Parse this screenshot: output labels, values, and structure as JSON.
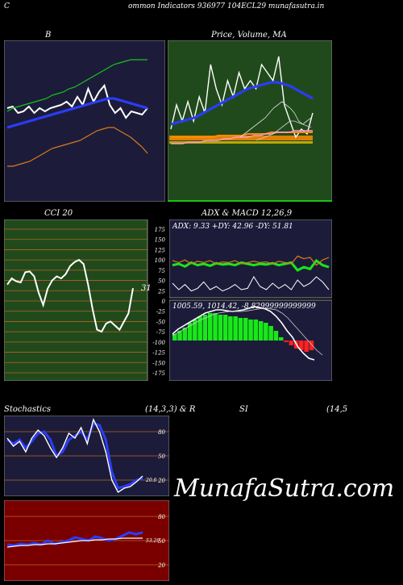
{
  "page": {
    "corner_left": "C",
    "header": "ommon  Indicators 936977 104ECL29 munafasutra.in",
    "watermark": "MunafaSutra.com"
  },
  "colors": {
    "background": "#000000",
    "navy": "#1c1c3a",
    "green": "#214a1c",
    "maroon": "#7a0000",
    "grid_orange": "#b5651d"
  },
  "icons": {
    "bar-chart": "chart",
    "trend-chart": "chart"
  },
  "chart_data": [
    {
      "type": "line",
      "title": "B",
      "series": [
        {
          "color": "#ffffff",
          "values": [
            0.58,
            0.59,
            0.55,
            0.56,
            0.59,
            0.55,
            0.58,
            0.56,
            0.58,
            0.59,
            0.6,
            0.62,
            0.59,
            0.65,
            0.6,
            0.7,
            0.62,
            0.68,
            0.72,
            0.6,
            0.55,
            0.58,
            0.52,
            0.56,
            0.55,
            0.54,
            0.58
          ]
        },
        {
          "color": "#2b3cff",
          "values": [
            0.46,
            0.47,
            0.48,
            0.49,
            0.5,
            0.51,
            0.52,
            0.53,
            0.54,
            0.55,
            0.56,
            0.57,
            0.58,
            0.59,
            0.6,
            0.61,
            0.62,
            0.63,
            0.64,
            0.64,
            0.63,
            0.62,
            0.61,
            0.6,
            0.59,
            0.58
          ]
        },
        {
          "color": "#18c418",
          "values": [
            0.56,
            0.58,
            0.59,
            0.6,
            0.61,
            0.62,
            0.63,
            0.64,
            0.66,
            0.67,
            0.68,
            0.7,
            0.71,
            0.73,
            0.75,
            0.77,
            0.79,
            0.81,
            0.83,
            0.85,
            0.86,
            0.87,
            0.88,
            0.88,
            0.88,
            0.88
          ]
        },
        {
          "color": "#d87a1c",
          "values": [
            0.22,
            0.22,
            0.23,
            0.24,
            0.25,
            0.27,
            0.29,
            0.31,
            0.33,
            0.34,
            0.35,
            0.36,
            0.37,
            0.38,
            0.4,
            0.42,
            0.44,
            0.45,
            0.46,
            0.46,
            0.44,
            0.42,
            0.4,
            0.37,
            0.34,
            0.3
          ]
        }
      ]
    },
    {
      "type": "line",
      "title": "Price,  Volume,  MA",
      "series": [
        {
          "color": "#ffffff",
          "values": [
            0.45,
            0.6,
            0.5,
            0.62,
            0.5,
            0.65,
            0.55,
            0.85,
            0.7,
            0.6,
            0.75,
            0.65,
            0.8,
            0.7,
            0.75,
            0.7,
            0.85,
            0.8,
            0.75,
            0.9,
            0.6,
            0.5,
            0.4,
            0.45,
            0.42,
            0.55
          ]
        },
        {
          "color": "#2b3cff",
          "values": [
            0.48,
            0.49,
            0.5,
            0.51,
            0.52,
            0.54,
            0.56,
            0.58,
            0.6,
            0.62,
            0.64,
            0.66,
            0.68,
            0.7,
            0.71,
            0.72,
            0.73,
            0.74,
            0.74,
            0.73,
            0.72,
            0.7,
            0.68,
            0.66,
            0.64
          ]
        },
        {
          "color": "#ff8c00",
          "values": [
            0.4,
            0.4,
            0.4,
            0.4,
            0.4,
            0.4,
            0.4,
            0.4,
            0.41,
            0.41,
            0.41,
            0.41,
            0.41,
            0.42,
            0.42,
            0.42,
            0.42,
            0.43,
            0.43,
            0.43,
            0.43,
            0.43,
            0.43,
            0.43,
            0.43
          ]
        },
        {
          "color": "#ff9ad5",
          "values": [
            0.36,
            0.36,
            0.36,
            0.37,
            0.37,
            0.37,
            0.38,
            0.38,
            0.38,
            0.39,
            0.39,
            0.4,
            0.4,
            0.4,
            0.41,
            0.41,
            0.42,
            0.42,
            0.43,
            0.43,
            0.43,
            0.44,
            0.44,
            0.44,
            0.44
          ]
        }
      ]
    },
    {
      "type": "line",
      "title": "CCI 20",
      "y_ticks": [
        "175",
        "150",
        "125",
        "100",
        "75",
        "50",
        "25",
        "0",
        "-25",
        "-50",
        "-75",
        "-100",
        "-125",
        "-150",
        "-175"
      ],
      "last_value_label": "31",
      "series": [
        {
          "color": "#ffffff",
          "values": [
            40,
            55,
            48,
            45,
            70,
            72,
            60,
            20,
            -10,
            30,
            50,
            60,
            55,
            65,
            85,
            95,
            100,
            90,
            40,
            -20,
            -70,
            -75,
            -55,
            -50,
            -60,
            -70,
            -50,
            -30,
            31
          ]
        }
      ]
    },
    {
      "type": "line",
      "title": "ADX  & MACD 12,26,9",
      "adx_readout": "ADX: 9.33 +DY: 42.96  -DY: 51.81",
      "macd_readout": "1005.59,  1014.42,  -8.82999999999999",
      "adx_series": [
        {
          "color": "#18e818",
          "values": [
            0.48,
            0.5,
            0.46,
            0.52,
            0.48,
            0.5,
            0.47,
            0.51,
            0.49,
            0.5,
            0.48,
            0.52,
            0.5,
            0.48,
            0.5,
            0.49,
            0.51,
            0.48,
            0.5,
            0.52,
            0.4,
            0.45,
            0.42,
            0.55,
            0.48,
            0.45
          ]
        },
        {
          "color": "#d87a1c",
          "values": [
            0.55,
            0.52,
            0.56,
            0.5,
            0.54,
            0.52,
            0.55,
            0.5,
            0.53,
            0.52,
            0.55,
            0.5,
            0.52,
            0.54,
            0.52,
            0.53,
            0.5,
            0.54,
            0.52,
            0.5,
            0.62,
            0.58,
            0.6,
            0.48,
            0.56,
            0.6
          ]
        },
        {
          "color": "#ffffff",
          "values": [
            0.2,
            0.1,
            0.18,
            0.08,
            0.12,
            0.22,
            0.1,
            0.15,
            0.08,
            0.12,
            0.18,
            0.1,
            0.12,
            0.3,
            0.15,
            0.1,
            0.2,
            0.12,
            0.18,
            0.1,
            0.25,
            0.15,
            0.2,
            0.3,
            0.22,
            0.1
          ]
        }
      ],
      "macd_hist": [
        0.2,
        0.3,
        0.4,
        0.55,
        0.65,
        0.75,
        0.8,
        0.85,
        0.85,
        0.8,
        0.8,
        0.75,
        0.75,
        0.7,
        0.7,
        0.65,
        0.65,
        0.6,
        0.55,
        0.45,
        0.3,
        0.1,
        -0.05,
        -0.15,
        -0.25,
        -0.3,
        -0.35,
        -0.3
      ]
    },
    {
      "type": "line",
      "title": "Stochastics",
      "params": "(14,3,3) & R",
      "y_ticks": [
        "80",
        "50",
        "20"
      ],
      "last_value_label": "20.6",
      "series": [
        {
          "color": "#2b3cff",
          "values": [
            70,
            65,
            70,
            60,
            68,
            78,
            80,
            70,
            50,
            55,
            70,
            75,
            80,
            70,
            90,
            88,
            70,
            30,
            10,
            12,
            15,
            20,
            22
          ]
        },
        {
          "color": "#ffffff",
          "values": [
            72,
            62,
            68,
            55,
            72,
            82,
            75,
            60,
            48,
            60,
            78,
            72,
            85,
            65,
            95,
            80,
            55,
            20,
            5,
            10,
            12,
            18,
            25
          ]
        }
      ]
    },
    {
      "type": "line",
      "title": "SI",
      "params": "(14,5",
      "y_ticks": [
        "80",
        "50",
        "20"
      ],
      "last_value_label": "53.29",
      "series": [
        {
          "color": "#2b3cff",
          "values": [
            45,
            44,
            46,
            45,
            47,
            45,
            50,
            46,
            48,
            50,
            54,
            52,
            50,
            55,
            53,
            50,
            52,
            56,
            60,
            58,
            60
          ]
        },
        {
          "color": "#ffffff",
          "values": [
            42,
            43,
            44,
            44,
            45,
            45,
            46,
            46,
            47,
            48,
            49,
            50,
            50,
            51,
            51,
            52,
            52,
            53,
            53,
            53,
            53
          ]
        }
      ]
    }
  ]
}
